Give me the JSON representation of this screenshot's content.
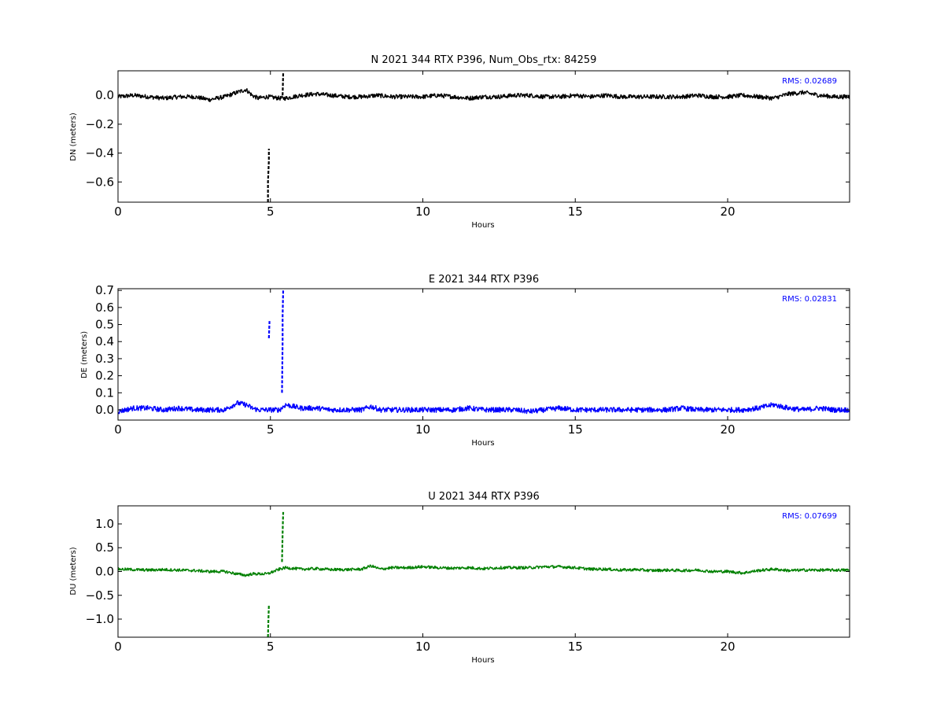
{
  "chart_data": [
    {
      "type": "line",
      "title": "N 2021 344 RTX  P396, Num_Obs_rtx: 84259",
      "xlabel": "Hours",
      "ylabel": "DN (meters)",
      "xlim": [
        0,
        24
      ],
      "ylim": [
        -0.74,
        0.17
      ],
      "xticks": [
        0,
        5,
        10,
        15,
        20
      ],
      "xtick_labels": [
        "0",
        "5",
        "10",
        "15",
        "20"
      ],
      "yticks": [
        0.0,
        -0.2,
        -0.4,
        -0.6
      ],
      "ytick_labels": [
        "0.0",
        "−0.2",
        "−0.4",
        "−0.6"
      ],
      "annotation": "RMS:  0.02689",
      "color": "#000000",
      "annotation_color": "#0000ff",
      "noise_amplitude": 0.015,
      "series": [
        {
          "x": [
            0,
            0.5,
            1,
            1.5,
            2,
            2.5,
            3,
            3.5,
            3.9,
            4.2,
            4.4,
            4.6,
            4.9,
            5.3,
            5.5,
            6,
            6.5,
            7,
            7.5,
            8,
            8.5,
            9,
            9.5,
            10,
            10.5,
            11,
            11.5,
            12,
            12.5,
            13,
            13.5,
            14,
            14.5,
            15,
            15.5,
            16,
            16.5,
            17,
            17.5,
            18,
            18.5,
            19,
            19.5,
            20,
            20.5,
            21,
            21.5,
            22,
            22.5,
            23,
            23.5,
            24
          ],
          "y": [
            -0.01,
            0.0,
            -0.01,
            -0.02,
            -0.01,
            -0.01,
            -0.03,
            -0.01,
            0.02,
            0.04,
            0.0,
            -0.02,
            -0.01,
            -0.02,
            -0.02,
            0.0,
            0.01,
            0.0,
            -0.01,
            -0.01,
            0.0,
            -0.01,
            -0.01,
            -0.01,
            0.0,
            -0.01,
            -0.02,
            -0.01,
            -0.01,
            0.0,
            0.0,
            -0.01,
            -0.01,
            0.0,
            -0.01,
            0.0,
            -0.01,
            -0.01,
            -0.01,
            -0.01,
            -0.01,
            0.0,
            -0.01,
            -0.01,
            0.0,
            -0.01,
            -0.02,
            0.01,
            0.02,
            0.0,
            -0.01,
            -0.01
          ]
        },
        {
          "x": [
            4.92,
            4.92,
            4.94,
            4.95,
            4.95
          ],
          "y": [
            -0.74,
            -0.6,
            -0.5,
            -0.45,
            -0.37
          ]
        },
        {
          "x": [
            5.4,
            5.41,
            5.42
          ],
          "y": [
            0.0,
            0.08,
            0.16
          ]
        }
      ]
    },
    {
      "type": "line",
      "title": "E 2021 344 RTX  P396",
      "xlabel": "Hours",
      "ylabel": "DE (meters)",
      "xlim": [
        0,
        24
      ],
      "ylim": [
        -0.06,
        0.71
      ],
      "xticks": [
        0,
        5,
        10,
        15,
        20
      ],
      "xtick_labels": [
        "0",
        "5",
        "10",
        "15",
        "20"
      ],
      "yticks": [
        0.0,
        0.1,
        0.2,
        0.3,
        0.4,
        0.5,
        0.6,
        0.7
      ],
      "ytick_labels": [
        "0.0",
        "0.1",
        "0.2",
        "0.3",
        "0.4",
        "0.5",
        "0.6",
        "0.7"
      ],
      "annotation": "RMS:  0.02831",
      "color": "#0000ff",
      "annotation_color": "#0000ff",
      "noise_amplitude": 0.015,
      "series": [
        {
          "x": [
            0,
            0.5,
            1,
            1.5,
            2,
            2.5,
            3,
            3.5,
            3.9,
            4.2,
            4.4,
            4.6,
            4.9,
            5.3,
            5.5,
            6,
            6.5,
            7,
            7.5,
            8,
            8.3,
            8.6,
            9,
            9.5,
            10,
            10.5,
            11,
            11.5,
            12,
            12.5,
            13,
            13.5,
            14,
            14.5,
            15,
            15.5,
            16,
            16.5,
            17,
            17.5,
            18,
            18.5,
            19,
            19.5,
            20,
            20.5,
            21,
            21.5,
            22,
            22.5,
            23,
            23.5,
            24
          ],
          "y": [
            -0.01,
            0.01,
            0.01,
            0.0,
            0.01,
            0.0,
            0.0,
            0.0,
            0.04,
            0.03,
            0.01,
            0.0,
            0.0,
            0.0,
            0.03,
            0.01,
            0.01,
            0.0,
            0.0,
            0.0,
            0.02,
            0.0,
            0.0,
            0.0,
            0.0,
            0.0,
            0.0,
            0.01,
            0.0,
            0.0,
            0.0,
            -0.01,
            0.0,
            0.01,
            0.0,
            0.0,
            0.0,
            0.0,
            0.0,
            0.0,
            0.0,
            0.01,
            0.0,
            0.0,
            0.0,
            0.0,
            0.01,
            0.03,
            0.01,
            0.0,
            0.01,
            0.0,
            0.0
          ]
        },
        {
          "x": [
            4.95,
            4.96,
            4.97
          ],
          "y": [
            0.42,
            0.47,
            0.52
          ]
        },
        {
          "x": [
            5.38,
            5.39,
            5.4,
            5.4,
            5.41,
            5.42
          ],
          "y": [
            0.1,
            0.25,
            0.4,
            0.55,
            0.63,
            0.71
          ]
        }
      ]
    },
    {
      "type": "line",
      "title": "U 2021 344 RTX  P396",
      "xlabel": "Hours",
      "ylabel": "DU (meters)",
      "xlim": [
        0,
        24
      ],
      "ylim": [
        -1.38,
        1.38
      ],
      "xticks": [
        0,
        5,
        10,
        15,
        20
      ],
      "xtick_labels": [
        "0",
        "5",
        "10",
        "15",
        "20"
      ],
      "yticks": [
        1.0,
        0.5,
        0.0,
        -0.5,
        -1.0
      ],
      "ytick_labels": [
        "1.0",
        "0.5",
        "0.0",
        "−0.5",
        "−1.0"
      ],
      "annotation": "RMS:  0.07699",
      "color": "#008000",
      "annotation_color": "#0000ff",
      "noise_amplitude": 0.03,
      "series": [
        {
          "x": [
            0,
            0.5,
            1,
            1.5,
            2,
            2.5,
            3,
            3.5,
            3.9,
            4.2,
            4.4,
            4.6,
            4.9,
            5.3,
            5.5,
            6,
            6.5,
            7,
            7.5,
            8,
            8.3,
            8.6,
            9,
            9.5,
            10,
            10.5,
            11,
            11.5,
            12,
            12.5,
            13,
            13.5,
            14,
            14.5,
            15,
            15.5,
            16,
            16.5,
            17,
            17.5,
            18,
            18.5,
            19,
            19.5,
            20,
            20.5,
            21,
            21.5,
            22,
            22.5,
            23,
            23.5,
            24
          ],
          "y": [
            0.05,
            0.04,
            0.03,
            0.04,
            0.03,
            0.02,
            0.0,
            0.0,
            -0.05,
            -0.08,
            -0.05,
            -0.05,
            -0.05,
            0.05,
            0.08,
            0.05,
            0.06,
            0.04,
            0.04,
            0.05,
            0.12,
            0.05,
            0.08,
            0.08,
            0.1,
            0.08,
            0.07,
            0.08,
            0.06,
            0.08,
            0.08,
            0.08,
            0.1,
            0.1,
            0.08,
            0.05,
            0.05,
            0.03,
            0.04,
            0.02,
            0.03,
            0.02,
            0.03,
            0.0,
            0.0,
            -0.03,
            0.02,
            0.05,
            0.02,
            0.03,
            0.03,
            0.03,
            0.03
          ]
        },
        {
          "x": [
            4.92,
            4.93,
            4.94,
            4.95
          ],
          "y": [
            -1.38,
            -1.1,
            -0.9,
            -0.72
          ]
        },
        {
          "x": [
            5.38,
            5.39,
            5.4,
            5.41,
            5.42
          ],
          "y": [
            0.2,
            0.5,
            0.8,
            1.05,
            1.25
          ]
        }
      ]
    }
  ]
}
